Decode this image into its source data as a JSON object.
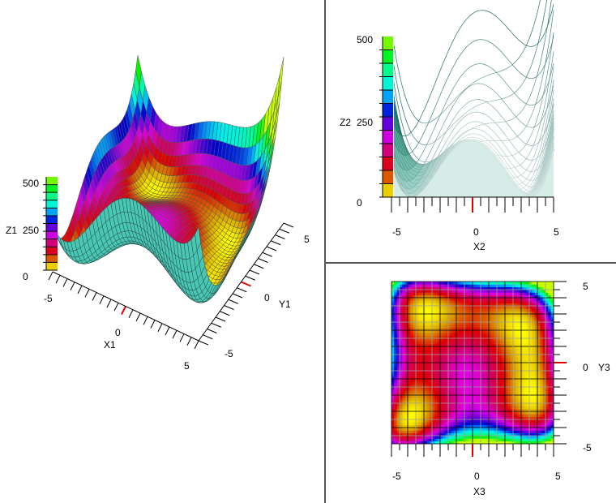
{
  "chart_data": [
    {
      "type": "surface",
      "view": "3d-perspective",
      "function": "himmelblau",
      "xlabel": "X1",
      "ylabel": "Y1",
      "zlabel": "Z1",
      "xlim": [
        -5,
        5
      ],
      "ylim": [
        -5,
        5
      ],
      "zlim": [
        0,
        500
      ],
      "x_ticks": [
        "-5",
        "0",
        "5"
      ],
      "y_ticks": [
        "-5",
        "0",
        "5"
      ],
      "z_ticks": [
        "0",
        "250",
        "500"
      ],
      "grid_steps": 40
    },
    {
      "type": "surface",
      "view": "side-xz",
      "function": "himmelblau",
      "xlabel": "X2",
      "zlabel": "Z2",
      "xlim": [
        -5,
        5
      ],
      "zlim": [
        0,
        500
      ],
      "x_ticks": [
        "-5",
        "0",
        "5"
      ],
      "z_ticks": [
        "0",
        "250",
        "500"
      ]
    },
    {
      "type": "heatmap",
      "view": "top-xy",
      "function": "himmelblau",
      "xlabel": "X3",
      "ylabel": "Y3",
      "xlim": [
        -5,
        5
      ],
      "ylim": [
        -5,
        5
      ],
      "x_ticks": [
        "-5",
        "0",
        "5"
      ],
      "y_ticks": [
        "-5",
        "0",
        "5"
      ],
      "grid_steps": 60
    }
  ],
  "colormap": [
    {
      "v": 0,
      "c": "#ffff00"
    },
    {
      "v": 40,
      "c": "#d8a000"
    },
    {
      "v": 90,
      "c": "#e00000"
    },
    {
      "v": 140,
      "c": "#d0006a"
    },
    {
      "v": 180,
      "c": "#e000e0"
    },
    {
      "v": 220,
      "c": "#8000e0"
    },
    {
      "v": 260,
      "c": "#0000d0"
    },
    {
      "v": 300,
      "c": "#0080ff"
    },
    {
      "v": 340,
      "c": "#00f0f0"
    },
    {
      "v": 400,
      "c": "#00ff80"
    },
    {
      "v": 450,
      "c": "#00f000"
    },
    {
      "v": 500,
      "c": "#c8ff00"
    }
  ],
  "colors": {
    "underside": "#48c8b4",
    "wire": "#2a4a48",
    "side_line": "#1f6e62",
    "side_fill": "#3aa890",
    "marker": "#e00000"
  }
}
